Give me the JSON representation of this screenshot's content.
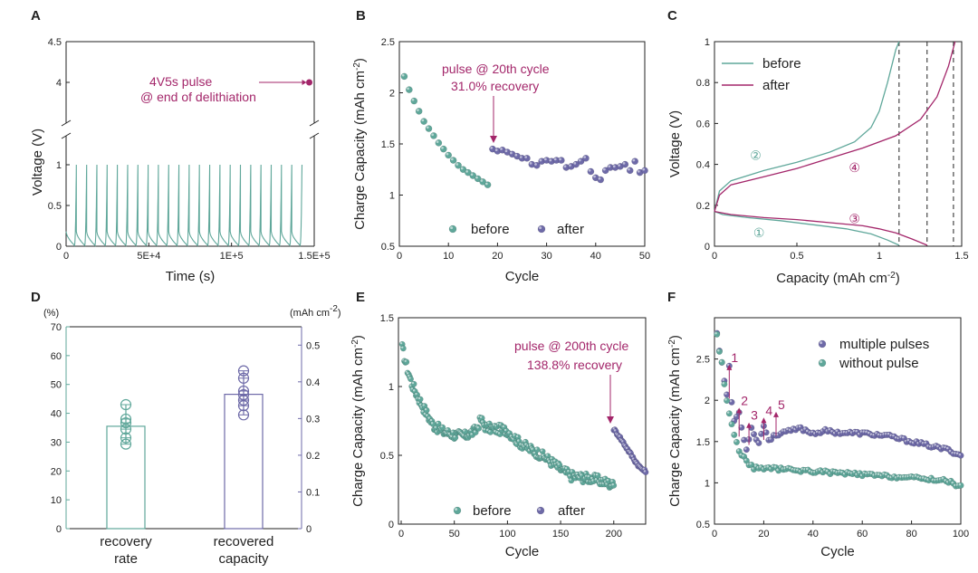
{
  "colors": {
    "teal": "#5fa79a",
    "purple": "#6e6aa8",
    "magenta": "#a3266a",
    "axis": "#222222",
    "tealAxis": "#5fa79a",
    "purpleAxis": "#6e6aa8"
  },
  "chart_data": [
    {
      "panel": "A",
      "type": "line",
      "xlabel": "Time (s)",
      "ylabel": "Voltage (V)",
      "xlim": [
        0,
        150000
      ],
      "xticks": [
        "0",
        "5E+4",
        "1E+5",
        "1.5E+5"
      ],
      "xtick_values": [
        0,
        50000,
        100000,
        150000
      ],
      "yticks_lower": [
        "0",
        "0.5",
        "1"
      ],
      "ytick_values_lower": [
        0,
        0.5,
        1
      ],
      "yticks_upper": [
        "4",
        "4.5"
      ],
      "ytick_values_upper": [
        4,
        4.5
      ],
      "ylim_lower": [
        0,
        1.2
      ],
      "ylim_upper": [
        3.5,
        4.5
      ],
      "cycles": 23,
      "cycle_period_s": 6200,
      "pulse_point": {
        "x": 147000,
        "y": 4.0
      },
      "annotation": [
        "4V5s pulse",
        "@ end of delithiation"
      ]
    },
    {
      "panel": "B",
      "type": "scatter",
      "xlabel": "Cycle",
      "ylabel": "Charge Capacity (mAh cm",
      "ylabel_sup": "-2",
      "ylabel_close": ")",
      "xlim": [
        0,
        50
      ],
      "ylim": [
        0.5,
        2.5
      ],
      "xticks": [
        "0",
        "10",
        "20",
        "30",
        "40",
        "50"
      ],
      "xtick_values": [
        0,
        10,
        20,
        30,
        40,
        50
      ],
      "yticks": [
        "0.5",
        "1",
        "1.5",
        "2",
        "2.5"
      ],
      "ytick_values": [
        0.5,
        1,
        1.5,
        2,
        2.5
      ],
      "annotation": [
        "pulse @ 20th cycle",
        "31.0% recovery"
      ],
      "series": [
        {
          "name": "before",
          "x": [
            1,
            2,
            3,
            4,
            5,
            6,
            7,
            8,
            9,
            10,
            11,
            12,
            13,
            14,
            15,
            16,
            17,
            18
          ],
          "values": [
            2.16,
            2.03,
            1.92,
            1.82,
            1.72,
            1.65,
            1.58,
            1.51,
            1.45,
            1.39,
            1.34,
            1.29,
            1.25,
            1.22,
            1.19,
            1.16,
            1.13,
            1.1
          ]
        },
        {
          "name": "after",
          "x": [
            19,
            20,
            21,
            22,
            23,
            24,
            25,
            26,
            27,
            28,
            29,
            30,
            31,
            32,
            33,
            34,
            35,
            36,
            37,
            38,
            39,
            40,
            41,
            42,
            43,
            44,
            45,
            46,
            47,
            48,
            49,
            50
          ],
          "values": [
            1.45,
            1.43,
            1.44,
            1.42,
            1.4,
            1.38,
            1.36,
            1.36,
            1.3,
            1.29,
            1.33,
            1.34,
            1.33,
            1.34,
            1.34,
            1.27,
            1.28,
            1.3,
            1.33,
            1.36,
            1.23,
            1.17,
            1.15,
            1.24,
            1.27,
            1.27,
            1.28,
            1.3,
            1.24,
            1.33,
            1.22,
            1.24
          ]
        }
      ]
    },
    {
      "panel": "C",
      "type": "line",
      "xlabel": "Capacity (mAh cm",
      "xlabel_sup": "-2",
      "xlabel_close": ")",
      "ylabel": "Voltage (V)",
      "xlim": [
        0,
        1.5
      ],
      "ylim": [
        0,
        1
      ],
      "xticks": [
        "0",
        "0.5",
        "1",
        "1.5"
      ],
      "xtick_values": [
        0,
        0.5,
        1,
        1.5
      ],
      "yticks": [
        "0",
        "0.2",
        "0.4",
        "0.6",
        "0.8",
        "1"
      ],
      "ytick_values": [
        0,
        0.2,
        0.4,
        0.6,
        0.8,
        1
      ],
      "dashed_x": [
        1.12,
        1.29,
        1.45
      ],
      "markers": [
        {
          "label": "①",
          "x": 0.27,
          "y": 0.07,
          "color": "teal"
        },
        {
          "label": "②",
          "x": 0.25,
          "y": 0.45,
          "color": "teal"
        },
        {
          "label": "③",
          "x": 0.85,
          "y": 0.14,
          "color": "magenta"
        },
        {
          "label": "④",
          "x": 0.85,
          "y": 0.39,
          "color": "magenta"
        }
      ],
      "series": [
        {
          "name": "before",
          "color": "teal",
          "charge": [
            [
              0,
              0.17
            ],
            [
              0.03,
              0.27
            ],
            [
              0.1,
              0.32
            ],
            [
              0.3,
              0.37
            ],
            [
              0.5,
              0.41
            ],
            [
              0.7,
              0.46
            ],
            [
              0.85,
              0.51
            ],
            [
              0.95,
              0.58
            ],
            [
              1.0,
              0.66
            ],
            [
              1.05,
              0.8
            ],
            [
              1.1,
              0.96
            ],
            [
              1.12,
              1.0
            ]
          ],
          "discharge": [
            [
              0,
              0.17
            ],
            [
              0.05,
              0.155
            ],
            [
              0.2,
              0.14
            ],
            [
              0.4,
              0.125
            ],
            [
              0.6,
              0.105
            ],
            [
              0.8,
              0.085
            ],
            [
              0.95,
              0.06
            ],
            [
              1.05,
              0.03
            ],
            [
              1.12,
              0.005
            ]
          ]
        },
        {
          "name": "after",
          "color": "magenta",
          "charge": [
            [
              0,
              0.17
            ],
            [
              0.03,
              0.25
            ],
            [
              0.1,
              0.3
            ],
            [
              0.3,
              0.34
            ],
            [
              0.5,
              0.38
            ],
            [
              0.7,
              0.43
            ],
            [
              0.9,
              0.48
            ],
            [
              1.1,
              0.54
            ],
            [
              1.25,
              0.62
            ],
            [
              1.35,
              0.73
            ],
            [
              1.42,
              0.88
            ],
            [
              1.46,
              1.0
            ]
          ],
          "discharge": [
            [
              0,
              0.17
            ],
            [
              0.1,
              0.155
            ],
            [
              0.3,
              0.14
            ],
            [
              0.5,
              0.13
            ],
            [
              0.7,
              0.115
            ],
            [
              0.9,
              0.1
            ],
            [
              1.0,
              0.085
            ],
            [
              1.1,
              0.065
            ],
            [
              1.2,
              0.035
            ],
            [
              1.26,
              0.015
            ],
            [
              1.29,
              0.005
            ]
          ]
        }
      ]
    },
    {
      "panel": "D",
      "type": "bar",
      "categories": [
        [
          "recovery",
          "rate"
        ],
        [
          "recovered",
          "capacity"
        ]
      ],
      "left_unit": "(%)",
      "right_unit": "(mAh cm",
      "right_unit_sup": "-2",
      "right_unit_close": ")",
      "ylim_left": [
        0,
        70
      ],
      "ylim_right": [
        0,
        0.55
      ],
      "yticks_left": [
        "0",
        "10",
        "20",
        "30",
        "40",
        "50",
        "60",
        "70"
      ],
      "ytick_values_left": [
        0,
        10,
        20,
        30,
        40,
        50,
        60,
        70
      ],
      "yticks_right": [
        "0",
        "0.1",
        "0.2",
        "0.3",
        "0.4",
        "0.5"
      ],
      "ytick_values_right": [
        0,
        0.1,
        0.2,
        0.3,
        0.4,
        0.5
      ],
      "series": [
        {
          "name": "recovery rate",
          "axis": "left",
          "value": 35.5,
          "points": [
            29.3,
            31.5,
            34.5,
            36.7,
            38.0,
            43.0
          ]
        },
        {
          "name": "recovered capacity",
          "axis": "right",
          "value": 0.366,
          "points": [
            0.31,
            0.335,
            0.35,
            0.365,
            0.375,
            0.41,
            0.43
          ]
        }
      ]
    },
    {
      "panel": "E",
      "type": "scatter",
      "xlabel": "Cycle",
      "ylabel": "Charge Capacity (mAh cm",
      "ylabel_sup": "-2",
      "ylabel_close": ")",
      "xlim": [
        0,
        230
      ],
      "ylim": [
        0,
        1.5
      ],
      "xticks": [
        "0",
        "50",
        "100",
        "150",
        "200"
      ],
      "xtick_values": [
        0,
        50,
        100,
        150,
        200
      ],
      "yticks": [
        "0",
        "0.5",
        "1",
        "1.5"
      ],
      "ytick_values": [
        0,
        0.5,
        1,
        1.5
      ],
      "annotation": [
        "pulse @ 200th cycle",
        "138.8% recovery"
      ],
      "series": [
        {
          "name": "before",
          "x_range": [
            1,
            200
          ],
          "anchors_x": [
            1,
            5,
            10,
            20,
            30,
            40,
            50,
            60,
            70,
            75,
            80,
            90,
            100,
            110,
            120,
            130,
            140,
            150,
            160,
            170,
            180,
            190,
            200
          ],
          "anchors_y": [
            1.28,
            1.15,
            1.02,
            0.86,
            0.72,
            0.67,
            0.65,
            0.64,
            0.68,
            0.76,
            0.7,
            0.69,
            0.68,
            0.6,
            0.55,
            0.51,
            0.46,
            0.4,
            0.35,
            0.34,
            0.33,
            0.31,
            0.28
          ],
          "jitter": 0.035
        },
        {
          "name": "after",
          "x_range": [
            200,
            230
          ],
          "anchors_x": [
            200,
            205,
            210,
            215,
            220,
            225,
            230
          ],
          "anchors_y": [
            0.69,
            0.64,
            0.58,
            0.52,
            0.46,
            0.41,
            0.38
          ],
          "jitter": 0.01
        }
      ]
    },
    {
      "panel": "F",
      "type": "scatter",
      "xlabel": "Cycle",
      "ylabel": "Charge Capacity (mAh cm",
      "ylabel_sup": "-2",
      "ylabel_close": ")",
      "xlim": [
        0,
        100
      ],
      "ylim": [
        0.5,
        3.0
      ],
      "xticks": [
        "0",
        "20",
        "40",
        "60",
        "80",
        "100"
      ],
      "xtick_values": [
        0,
        20,
        40,
        60,
        80,
        100
      ],
      "yticks": [
        "0.5",
        "1",
        "1.5",
        "2",
        "2.5"
      ],
      "ytick_values": [
        0.5,
        1,
        1.5,
        2,
        2.5
      ],
      "pulse_marks": [
        {
          "label": "1",
          "x": 6,
          "y_from": 2.02,
          "y_to": 2.42
        },
        {
          "label": "2",
          "x": 10,
          "y_from": 1.56,
          "y_to": 1.9
        },
        {
          "label": "3",
          "x": 14,
          "y_from": 1.46,
          "y_to": 1.72
        },
        {
          "label": "4",
          "x": 20,
          "y_from": 1.52,
          "y_to": 1.78
        },
        {
          "label": "5",
          "x": 25,
          "y_from": 1.57,
          "y_to": 1.85
        }
      ],
      "series": [
        {
          "name": "multiple pulses",
          "x_range": [
            1,
            100
          ],
          "anchors_x": [
            1,
            2,
            3,
            4,
            5,
            6,
            7,
            8,
            10,
            12,
            13,
            15,
            18,
            20,
            22,
            25,
            28,
            30,
            35,
            40,
            45,
            50,
            60,
            70,
            80,
            90,
            95,
            100
          ],
          "anchors_y": [
            2.82,
            2.62,
            2.45,
            2.25,
            2.05,
            2.42,
            1.98,
            1.75,
            1.85,
            1.52,
            1.42,
            1.66,
            1.48,
            1.7,
            1.52,
            1.58,
            1.62,
            1.62,
            1.66,
            1.6,
            1.63,
            1.61,
            1.6,
            1.57,
            1.5,
            1.43,
            1.4,
            1.33
          ],
          "jitter": 0.02
        },
        {
          "name": "without pulse",
          "x_range": [
            1,
            100
          ],
          "anchors_x": [
            1,
            2,
            3,
            4,
            5,
            6,
            7,
            8,
            9,
            10,
            12,
            14,
            16,
            20,
            25,
            30,
            40,
            50,
            60,
            70,
            80,
            90,
            95,
            100
          ],
          "anchors_y": [
            2.8,
            2.6,
            2.45,
            2.2,
            2.0,
            1.85,
            1.7,
            1.58,
            1.48,
            1.4,
            1.3,
            1.22,
            1.18,
            1.18,
            1.17,
            1.16,
            1.14,
            1.12,
            1.1,
            1.08,
            1.06,
            1.04,
            1.02,
            0.95
          ],
          "jitter": 0.02
        }
      ]
    }
  ]
}
